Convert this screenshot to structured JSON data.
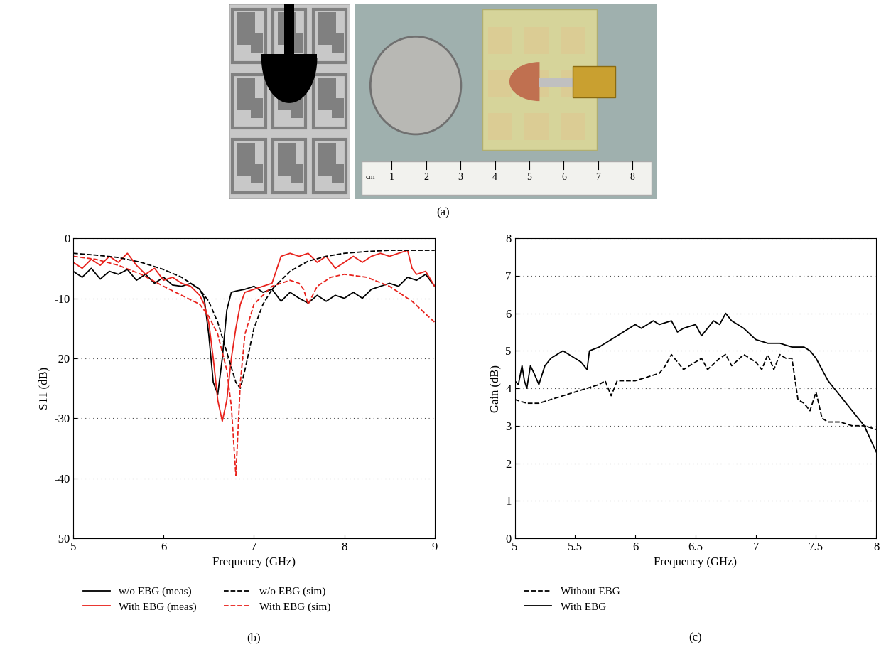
{
  "chart_data": [
    {
      "type": "line",
      "panel_label": "(b)",
      "x_label": "Frequency (GHz)",
      "y_label": "S11 (dB)",
      "xlim": [
        5,
        9
      ],
      "xticks": [
        5,
        6,
        7,
        8,
        9
      ],
      "ylim": [
        -50,
        0
      ],
      "yticks": [
        -50,
        -40,
        -30,
        -20,
        -10,
        0
      ],
      "grid": true,
      "legend": "upper left",
      "series": [
        {
          "name": "w/o EBG (meas)",
          "color": "#000000",
          "line_style": "solid",
          "x": [
            5,
            5.1,
            5.2,
            5.3,
            5.4,
            5.5,
            5.6,
            5.7,
            5.8,
            5.9,
            6.0,
            6.1,
            6.2,
            6.3,
            6.4,
            6.45,
            6.5,
            6.55,
            6.6,
            6.65,
            6.7,
            6.75,
            6.8,
            6.9,
            7.0,
            7.1,
            7.2,
            7.3,
            7.4,
            7.5,
            7.6,
            7.7,
            7.8,
            7.9,
            8.0,
            8.1,
            8.2,
            8.3,
            8.4,
            8.5,
            8.6,
            8.7,
            8.8,
            8.9,
            9.0
          ],
          "values": [
            -5.5,
            -6.5,
            -5,
            -6.8,
            -5.5,
            -6,
            -5.2,
            -7,
            -6,
            -7.5,
            -6.5,
            -7.8,
            -8,
            -7.5,
            -8.5,
            -10,
            -16,
            -24,
            -26,
            -20,
            -12,
            -9,
            -8.8,
            -8.5,
            -8,
            -9,
            -8.5,
            -10.5,
            -9,
            -10,
            -10.8,
            -9.5,
            -10.5,
            -9.5,
            -10,
            -9,
            -10,
            -8.5,
            -8,
            -7.5,
            -8,
            -6.5,
            -7,
            -6,
            -8
          ]
        },
        {
          "name": "With EBG (meas)",
          "color": "#e8221c",
          "line_style": "solid",
          "x": [
            5,
            5.1,
            5.2,
            5.3,
            5.4,
            5.5,
            5.6,
            5.7,
            5.8,
            5.9,
            6.0,
            6.1,
            6.2,
            6.3,
            6.4,
            6.45,
            6.5,
            6.55,
            6.6,
            6.65,
            6.7,
            6.75,
            6.8,
            6.85,
            6.9,
            7.0,
            7.1,
            7.2,
            7.3,
            7.4,
            7.5,
            7.6,
            7.7,
            7.8,
            7.9,
            8.0,
            8.1,
            8.2,
            8.3,
            8.4,
            8.5,
            8.6,
            8.7,
            8.75,
            8.8,
            8.9,
            9.0
          ],
          "values": [
            -4,
            -5,
            -3.5,
            -4.5,
            -3,
            -4,
            -2.5,
            -4.5,
            -6,
            -5,
            -7,
            -6.5,
            -7.5,
            -8,
            -9.5,
            -11,
            -14,
            -20,
            -27,
            -30.5,
            -27,
            -20,
            -15,
            -11,
            -9,
            -8.5,
            -8,
            -7.5,
            -3,
            -2.5,
            -3,
            -2.5,
            -4,
            -3,
            -5,
            -4,
            -3,
            -4,
            -3,
            -2.5,
            -3,
            -2.5,
            -2,
            -5,
            -6,
            -5.5,
            -8
          ]
        },
        {
          "name": "w/o EBG (sim)",
          "color": "#000000",
          "line_style": "dashed",
          "x": [
            5,
            5.25,
            5.5,
            5.75,
            6,
            6.2,
            6.4,
            6.5,
            6.6,
            6.7,
            6.8,
            6.85,
            6.9,
            7.0,
            7.1,
            7.2,
            7.4,
            7.6,
            7.8,
            8.0,
            8.25,
            8.5,
            8.75,
            9
          ],
          "values": [
            -2.5,
            -2.8,
            -3.2,
            -4,
            -5.2,
            -6.5,
            -8.5,
            -10.5,
            -14,
            -19,
            -24,
            -25,
            -22,
            -15,
            -11,
            -8.5,
            -5.5,
            -3.8,
            -3,
            -2.5,
            -2.2,
            -2,
            -2,
            -2
          ]
        },
        {
          "name": "With EBG (sim)",
          "color": "#e8221c",
          "line_style": "dashed",
          "x": [
            5,
            5.25,
            5.5,
            5.75,
            6,
            6.2,
            6.4,
            6.5,
            6.6,
            6.7,
            6.75,
            6.8,
            6.85,
            6.9,
            7.0,
            7.2,
            7.4,
            7.5,
            7.55,
            7.6,
            7.7,
            7.85,
            8,
            8.25,
            8.5,
            8.75,
            9
          ],
          "values": [
            -3,
            -3.5,
            -4.5,
            -6,
            -8,
            -9.5,
            -11,
            -13,
            -16,
            -22,
            -28,
            -39.5,
            -24,
            -16,
            -11,
            -8,
            -7,
            -7.5,
            -8.5,
            -11,
            -8,
            -6.5,
            -6,
            -6.5,
            -8,
            -10.5,
            -14
          ]
        }
      ]
    },
    {
      "type": "line",
      "panel_label": "(c)",
      "x_label": "Frequency (GHz)",
      "y_label": "Gain (dB)",
      "xlim": [
        5,
        8
      ],
      "xticks": [
        5,
        5.5,
        6,
        6.5,
        7,
        7.5,
        8
      ],
      "ylim": [
        0,
        8
      ],
      "yticks": [
        0,
        1,
        2,
        3,
        4,
        5,
        6,
        7,
        8
      ],
      "grid": true,
      "legend": "upper left",
      "series": [
        {
          "name": "Without EBG",
          "color": "#000000",
          "line_style": "dashed",
          "x": [
            5,
            5.1,
            5.2,
            5.3,
            5.4,
            5.5,
            5.6,
            5.7,
            5.75,
            5.8,
            5.85,
            5.9,
            6.0,
            6.1,
            6.2,
            6.25,
            6.3,
            6.35,
            6.4,
            6.5,
            6.55,
            6.6,
            6.7,
            6.75,
            6.8,
            6.9,
            7.0,
            7.05,
            7.1,
            7.15,
            7.2,
            7.25,
            7.3,
            7.35,
            7.4,
            7.45,
            7.5,
            7.55,
            7.6,
            7.7,
            7.8,
            7.9,
            8.0
          ],
          "values": [
            3.7,
            3.6,
            3.6,
            3.7,
            3.8,
            3.9,
            4.0,
            4.1,
            4.2,
            3.8,
            4.2,
            4.2,
            4.2,
            4.3,
            4.4,
            4.6,
            4.9,
            4.7,
            4.5,
            4.7,
            4.8,
            4.5,
            4.8,
            4.9,
            4.6,
            4.9,
            4.7,
            4.5,
            4.9,
            4.5,
            4.9,
            4.8,
            4.8,
            3.7,
            3.6,
            3.4,
            3.9,
            3.2,
            3.1,
            3.1,
            3.0,
            3.0,
            2.9
          ]
        },
        {
          "name": "With EBG",
          "color": "#000000",
          "line_style": "solid",
          "x": [
            5,
            5.03,
            5.06,
            5.08,
            5.1,
            5.13,
            5.16,
            5.2,
            5.25,
            5.3,
            5.4,
            5.5,
            5.55,
            5.6,
            5.62,
            5.7,
            5.8,
            5.9,
            6.0,
            6.05,
            6.1,
            6.15,
            6.2,
            6.3,
            6.35,
            6.4,
            6.5,
            6.55,
            6.6,
            6.65,
            6.7,
            6.75,
            6.8,
            6.9,
            7.0,
            7.1,
            7.2,
            7.3,
            7.4,
            7.45,
            7.5,
            7.6,
            7.7,
            7.8,
            7.9,
            8.0
          ],
          "values": [
            4.2,
            4.1,
            4.6,
            4.2,
            4.0,
            4.6,
            4.4,
            4.1,
            4.6,
            4.8,
            5.0,
            4.8,
            4.7,
            4.5,
            5.0,
            5.1,
            5.3,
            5.5,
            5.7,
            5.6,
            5.7,
            5.8,
            5.7,
            5.8,
            5.5,
            5.6,
            5.7,
            5.4,
            5.6,
            5.8,
            5.7,
            6.0,
            5.8,
            5.6,
            5.3,
            5.2,
            5.2,
            5.1,
            5.1,
            5.0,
            4.8,
            4.2,
            3.8,
            3.4,
            3.0,
            2.3
          ]
        }
      ]
    }
  ],
  "panels": {
    "a": {
      "label": "(a)",
      "ruler_unit": "cm",
      "ruler_marks": [
        1,
        2,
        3,
        4,
        5,
        6,
        7,
        8
      ]
    }
  }
}
